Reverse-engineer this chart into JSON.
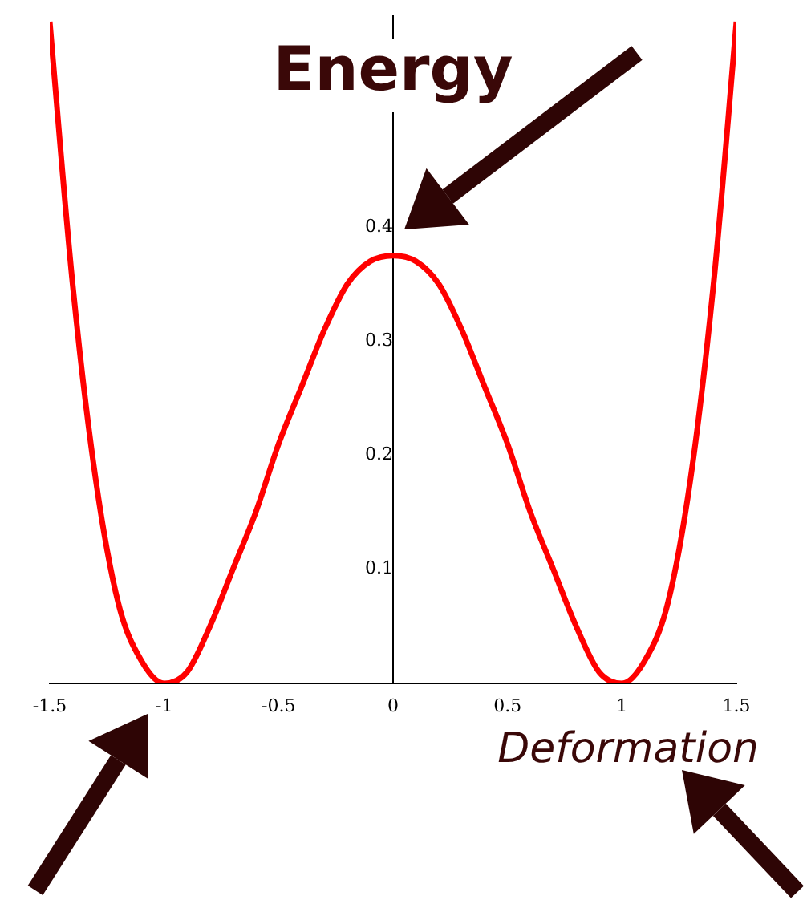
{
  "chart_data": {
    "type": "line",
    "title": "Energy",
    "xlabel": "Deformation",
    "x": [
      -1.5,
      -1.4,
      -1.3,
      -1.2,
      -1.1,
      -1.0,
      -0.9,
      -0.8,
      -0.7,
      -0.6,
      -0.5,
      -0.4,
      -0.3,
      -0.2,
      -0.1,
      0,
      0.1,
      0.2,
      0.3,
      0.4,
      0.5,
      0.6,
      0.7,
      0.8,
      0.9,
      1.0,
      1.1,
      1.2,
      1.3,
      1.4,
      1.5
    ],
    "series": [
      {
        "color": "#ff0000",
        "values": [
          0.58,
          0.35,
          0.18,
          0.07,
          0.02,
          0,
          0.01,
          0.05,
          0.1,
          0.15,
          0.21,
          0.26,
          0.31,
          0.35,
          0.37,
          0.375,
          0.37,
          0.35,
          0.31,
          0.26,
          0.21,
          0.15,
          0.1,
          0.05,
          0.01,
          0,
          0.02,
          0.07,
          0.18,
          0.35,
          0.58
        ]
      }
    ],
    "xlim": [
      -1.5,
      1.5
    ],
    "ylim": [
      0,
      0.585
    ],
    "xticks": [
      -1.5,
      -1,
      -0.5,
      0,
      0.5,
      1,
      1.5
    ],
    "yticks": [
      0.1,
      0.2,
      0.3,
      0.4
    ],
    "grid": false,
    "legend": false,
    "marker": "none",
    "line_style": "solid"
  }
}
